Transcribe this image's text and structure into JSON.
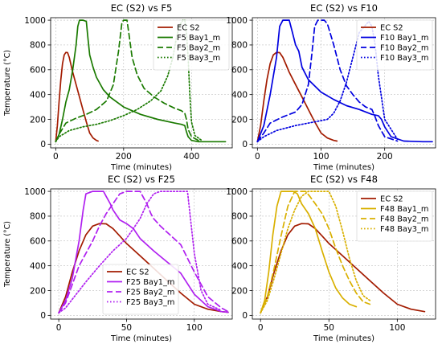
{
  "chart_data": [
    {
      "type": "line",
      "title": "EC (S2) vs F5",
      "xlabel": "Time (minutes)",
      "ylabel": "Temperature (°C)",
      "xlim": [
        -15,
        520
      ],
      "ylim": [
        -30,
        1020
      ],
      "xticks": [
        0,
        200,
        400
      ],
      "yticks": [
        0,
        200,
        400,
        600,
        800,
        1000
      ],
      "legend_position": "top-right",
      "grid": true,
      "series": [
        {
          "name": "EC S2",
          "color": "#a31b00",
          "dash": "solid",
          "x": [
            0,
            5,
            10,
            15,
            20,
            25,
            30,
            35,
            40,
            45,
            50,
            60,
            70,
            80,
            90,
            100,
            110,
            120,
            125
          ],
          "y": [
            20,
            150,
            350,
            520,
            650,
            720,
            740,
            738,
            700,
            640,
            580,
            480,
            380,
            280,
            180,
            90,
            50,
            30,
            25
          ]
        },
        {
          "name": "F5 Bay1_m",
          "color": "#1a7a00",
          "dash": "solid",
          "x": [
            0,
            10,
            20,
            30,
            40,
            50,
            60,
            65,
            70,
            80,
            90,
            95,
            100,
            110,
            120,
            140,
            160,
            200,
            250,
            300,
            350,
            370,
            380,
            385,
            390,
            400,
            420,
            450,
            500
          ],
          "y": [
            20,
            80,
            200,
            340,
            440,
            600,
            800,
            950,
            1000,
            1000,
            990,
            850,
            720,
            620,
            540,
            440,
            380,
            300,
            240,
            200,
            170,
            160,
            150,
            100,
            60,
            30,
            20,
            20,
            20
          ]
        },
        {
          "name": "F5 Bay2_m",
          "color": "#1a7a00",
          "dash": "dashed",
          "x": [
            0,
            10,
            30,
            60,
            90,
            120,
            150,
            170,
            185,
            195,
            200,
            210,
            215,
            225,
            240,
            260,
            290,
            320,
            350,
            370,
            380,
            385,
            390,
            400,
            420
          ],
          "y": [
            20,
            80,
            170,
            210,
            240,
            280,
            350,
            480,
            750,
            980,
            1000,
            1000,
            900,
            700,
            560,
            450,
            380,
            330,
            290,
            270,
            250,
            200,
            120,
            60,
            30
          ]
        },
        {
          "name": "F5 Bay3_m",
          "color": "#1a7a00",
          "dash": "dotted",
          "x": [
            0,
            10,
            40,
            80,
            120,
            160,
            200,
            240,
            280,
            310,
            330,
            345,
            355,
            365,
            375,
            380,
            385,
            390,
            395,
            400,
            410,
            430
          ],
          "y": [
            20,
            60,
            110,
            140,
            160,
            190,
            230,
            280,
            350,
            430,
            550,
            700,
            850,
            960,
            1000,
            1000,
            900,
            700,
            400,
            180,
            70,
            30
          ]
        }
      ]
    },
    {
      "type": "line",
      "title": "EC (S2) vs F10",
      "xlabel": "Time (minutes)",
      "ylabel": "",
      "xlim": [
        -8,
        280
      ],
      "ylim": [
        -30,
        1020
      ],
      "xticks": [
        0,
        100,
        200
      ],
      "yticks": [
        0,
        200,
        400,
        600,
        800,
        1000
      ],
      "legend_position": "top-right",
      "grid": true,
      "series": [
        {
          "name": "EC S2",
          "color": "#a31b00",
          "dash": "solid",
          "x": [
            0,
            5,
            10,
            15,
            20,
            25,
            30,
            35,
            40,
            45,
            50,
            60,
            70,
            80,
            90,
            100,
            110,
            120,
            125
          ],
          "y": [
            20,
            150,
            350,
            520,
            650,
            720,
            740,
            738,
            700,
            640,
            580,
            480,
            380,
            280,
            180,
            90,
            50,
            30,
            25
          ]
        },
        {
          "name": "F10 Bay1_m",
          "color": "#0000e0",
          "dash": "solid",
          "x": [
            0,
            10,
            20,
            30,
            35,
            40,
            45,
            50,
            55,
            60,
            65,
            70,
            80,
            100,
            120,
            140,
            160,
            180,
            190,
            195,
            200,
            210,
            230,
            260,
            275
          ],
          "y": [
            20,
            150,
            400,
            700,
            950,
            1000,
            1000,
            1000,
            900,
            800,
            750,
            620,
            520,
            420,
            360,
            310,
            280,
            240,
            230,
            200,
            140,
            60,
            25,
            20,
            20
          ]
        },
        {
          "name": "F10 Bay2_m",
          "color": "#0000e0",
          "dash": "dashed",
          "x": [
            0,
            10,
            20,
            40,
            60,
            70,
            80,
            85,
            90,
            95,
            100,
            105,
            110,
            120,
            130,
            140,
            150,
            160,
            170,
            175,
            180,
            185,
            190,
            200,
            220
          ],
          "y": [
            20,
            90,
            170,
            220,
            260,
            320,
            480,
            700,
            950,
            1000,
            1000,
            1000,
            970,
            800,
            600,
            470,
            400,
            340,
            300,
            290,
            280,
            220,
            150,
            60,
            25
          ]
        },
        {
          "name": "F10 Bay3_m",
          "color": "#0000e0",
          "dash": "dotted",
          "x": [
            0,
            10,
            30,
            60,
            90,
            110,
            120,
            130,
            140,
            145,
            150,
            160,
            170,
            175,
            180,
            185,
            190,
            200,
            220
          ],
          "y": [
            20,
            60,
            110,
            150,
            180,
            200,
            250,
            350,
            500,
            600,
            700,
            900,
            960,
            990,
            950,
            800,
            550,
            200,
            40
          ]
        }
      ]
    },
    {
      "type": "line",
      "title": "EC (S2) vs F25",
      "xlabel": "Time (minutes)",
      "ylabel": "Temperature (°C)",
      "xlim": [
        -6,
        128
      ],
      "ylim": [
        -30,
        1020
      ],
      "xticks": [
        0,
        50,
        100
      ],
      "yticks": [
        0,
        200,
        400,
        600,
        800,
        1000
      ],
      "legend_position": "bottom-center",
      "grid": true,
      "series": [
        {
          "name": "EC S2",
          "color": "#a31b00",
          "dash": "solid",
          "x": [
            0,
            5,
            10,
            15,
            20,
            25,
            30,
            35,
            40,
            45,
            50,
            60,
            70,
            80,
            90,
            100,
            110,
            120,
            125
          ],
          "y": [
            20,
            150,
            350,
            520,
            650,
            720,
            740,
            738,
            700,
            640,
            580,
            480,
            380,
            280,
            180,
            90,
            50,
            30,
            25
          ]
        },
        {
          "name": "F25 Bay1_m",
          "color": "#b020f0",
          "dash": "solid",
          "x": [
            0,
            5,
            10,
            15,
            18,
            20,
            25,
            30,
            33,
            35,
            38,
            40,
            45,
            50,
            55,
            60,
            70,
            80,
            90,
            100,
            110,
            120,
            125
          ],
          "y": [
            20,
            120,
            300,
            600,
            850,
            980,
            1000,
            1000,
            1000,
            960,
            900,
            850,
            770,
            740,
            700,
            620,
            520,
            430,
            340,
            170,
            70,
            30,
            25
          ]
        },
        {
          "name": "F25 Bay2_m",
          "color": "#b020f0",
          "dash": "dashed",
          "x": [
            0,
            5,
            10,
            15,
            20,
            25,
            30,
            35,
            40,
            45,
            50,
            55,
            60,
            65,
            68,
            70,
            75,
            80,
            90,
            100,
            110,
            120,
            125
          ],
          "y": [
            20,
            100,
            250,
            400,
            500,
            600,
            720,
            820,
            900,
            980,
            1000,
            1000,
            1000,
            900,
            820,
            780,
            720,
            670,
            570,
            350,
            150,
            60,
            30
          ]
        },
        {
          "name": "F25 Bay3_m",
          "color": "#b020f0",
          "dash": "dotted",
          "x": [
            0,
            5,
            10,
            20,
            30,
            40,
            50,
            55,
            60,
            65,
            70,
            75,
            80,
            85,
            90,
            95,
            100,
            105,
            110,
            120
          ],
          "y": [
            20,
            60,
            130,
            270,
            400,
            520,
            620,
            700,
            780,
            900,
            980,
            1000,
            1000,
            1000,
            1000,
            1000,
            500,
            200,
            90,
            40
          ]
        }
      ]
    },
    {
      "type": "line",
      "title": "EC (S2) vs F48",
      "xlabel": "Time (minutes)",
      "ylabel": "",
      "xlim": [
        -6,
        128
      ],
      "ylim": [
        -30,
        1020
      ],
      "xticks": [
        0,
        50,
        100
      ],
      "yticks": [
        0,
        200,
        400,
        600,
        800,
        1000
      ],
      "legend_position": "top-right",
      "grid": true,
      "series": [
        {
          "name": "EC S2",
          "color": "#a31b00",
          "dash": "solid",
          "x": [
            0,
            5,
            10,
            15,
            20,
            25,
            30,
            35,
            40,
            45,
            50,
            60,
            70,
            80,
            90,
            100,
            110,
            120
          ],
          "y": [
            20,
            150,
            350,
            520,
            650,
            720,
            740,
            738,
            700,
            640,
            580,
            480,
            380,
            280,
            180,
            90,
            50,
            30
          ]
        },
        {
          "name": "F48 Bay1_m",
          "color": "#d9b000",
          "dash": "solid",
          "x": [
            0,
            3,
            6,
            9,
            12,
            15,
            18,
            21,
            24,
            27,
            30,
            35,
            40,
            45,
            50,
            55,
            60,
            65,
            70
          ],
          "y": [
            20,
            120,
            350,
            650,
            880,
            1000,
            1000,
            1000,
            1000,
            980,
            900,
            820,
            700,
            520,
            350,
            220,
            140,
            90,
            70
          ]
        },
        {
          "name": "F48 Bay2_m",
          "color": "#d9b000",
          "dash": "dashed",
          "x": [
            0,
            5,
            10,
            15,
            20,
            25,
            30,
            33,
            36,
            40,
            45,
            50,
            55,
            60,
            65,
            70,
            75,
            80
          ],
          "y": [
            20,
            150,
            380,
            640,
            880,
            1000,
            1000,
            1000,
            960,
            900,
            820,
            700,
            540,
            400,
            280,
            180,
            110,
            90
          ]
        },
        {
          "name": "F48 Bay3_m",
          "color": "#d9b000",
          "dash": "dotted",
          "x": [
            0,
            5,
            10,
            15,
            20,
            25,
            30,
            35,
            40,
            45,
            50,
            55,
            60,
            65,
            70,
            75,
            80
          ],
          "y": [
            20,
            120,
            300,
            500,
            700,
            850,
            960,
            1000,
            1000,
            1000,
            1000,
            880,
            680,
            460,
            280,
            160,
            120
          ]
        }
      ]
    }
  ]
}
